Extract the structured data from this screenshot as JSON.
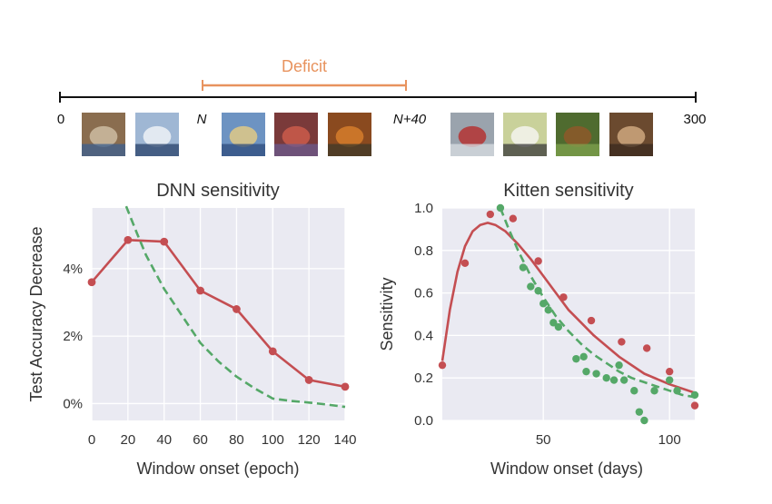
{
  "timeline": {
    "deficit_label": "Deficit",
    "start_label": "0",
    "n_label": "N",
    "n40_label": "N+40",
    "end_label": "300",
    "colors": {
      "axis": "#111111",
      "deficit": "#e8935e"
    },
    "thumbnails": [
      {
        "name": "cat",
        "colors": [
          "#8a6d4f",
          "#c9b79c",
          "#3b5f8f"
        ]
      },
      {
        "name": "ship",
        "colors": [
          "#9fb7d4",
          "#e9eef4",
          "#27406a"
        ]
      },
      {
        "name": "blurry-1",
        "colors": [
          "#6d93c2",
          "#d9c68a",
          "#2e4b7c"
        ]
      },
      {
        "name": "blurry-2",
        "colors": [
          "#7a3a3a",
          "#c75a4a",
          "#6b5b8f"
        ]
      },
      {
        "name": "blurry-3",
        "colors": [
          "#8a4a1f",
          "#d07a2a",
          "#3d3a2a"
        ]
      },
      {
        "name": "truck",
        "colors": [
          "#9aa3ad",
          "#b23a3a",
          "#d8dde3"
        ]
      },
      {
        "name": "bird",
        "colors": [
          "#c9d19a",
          "#f2f2ea",
          "#3a3a3a"
        ]
      },
      {
        "name": "horse",
        "colors": [
          "#4f6b2f",
          "#8a5a2a",
          "#7fa34f"
        ]
      },
      {
        "name": "frog",
        "colors": [
          "#6b4a2f",
          "#c9a27a",
          "#3a2a1f"
        ]
      }
    ]
  },
  "chart_data": [
    {
      "type": "line",
      "title": "DNN sensitivity",
      "xlabel": "Window onset (epoch)",
      "ylabel": "Test Accuracy Decrease",
      "xlim": [
        0,
        140
      ],
      "ylim": [
        -0.5,
        5.8
      ],
      "xticks": [
        0,
        20,
        40,
        60,
        80,
        100,
        120,
        140
      ],
      "xtick_labels": [
        "0",
        "20",
        "40",
        "60",
        "80",
        "100",
        "120",
        "140"
      ],
      "yticks": [
        0,
        2,
        4
      ],
      "ytick_labels": [
        "0%",
        "2%",
        "4%"
      ],
      "grid": true,
      "series": [
        {
          "name": "sensitivity",
          "style": "solid-markers",
          "color": "#c44e52",
          "x": [
            0,
            20,
            40,
            60,
            80,
            100,
            120,
            140
          ],
          "y": [
            3.6,
            4.85,
            4.8,
            3.35,
            2.8,
            1.55,
            0.7,
            0.5
          ]
        },
        {
          "name": "fit",
          "style": "dashed",
          "color": "#55a868",
          "x": [
            19,
            25,
            30,
            35,
            40,
            50,
            60,
            70,
            80,
            90,
            100,
            110,
            120,
            130,
            140
          ],
          "y": [
            5.85,
            5.05,
            4.4,
            3.9,
            3.4,
            2.6,
            1.8,
            1.25,
            0.8,
            0.45,
            0.15,
            0.08,
            0.03,
            -0.03,
            -0.1
          ]
        }
      ]
    },
    {
      "type": "scatter",
      "title": "Kitten sensitivity",
      "xlabel": "Window onset (days)",
      "ylabel": "Sensitivity",
      "xlim": [
        10,
        110
      ],
      "ylim": [
        0.0,
        1.0
      ],
      "xticks": [
        50,
        100
      ],
      "xtick_labels": [
        "50",
        "100"
      ],
      "yticks": [
        0.0,
        0.2,
        0.4,
        0.6,
        0.8,
        1.0
      ],
      "ytick_labels": [
        "0.0",
        "0.2",
        "0.4",
        "0.6",
        "0.8",
        "1.0"
      ],
      "grid": true,
      "series": [
        {
          "name": "red-points",
          "style": "points",
          "color": "#c44e52",
          "x": [
            10,
            19,
            29,
            38,
            48,
            58,
            69,
            81,
            91,
            100,
            110
          ],
          "y": [
            0.26,
            0.74,
            0.97,
            0.95,
            0.75,
            0.58,
            0.47,
            0.37,
            0.34,
            0.23,
            0.07
          ]
        },
        {
          "name": "red-fit",
          "style": "solid",
          "color": "#c44e52",
          "x": [
            10,
            13,
            16,
            19,
            22,
            25,
            28,
            31,
            35,
            40,
            45,
            50,
            55,
            60,
            70,
            80,
            90,
            100,
            110
          ],
          "y": [
            0.28,
            0.52,
            0.7,
            0.82,
            0.89,
            0.92,
            0.93,
            0.92,
            0.89,
            0.83,
            0.76,
            0.68,
            0.6,
            0.52,
            0.4,
            0.3,
            0.22,
            0.17,
            0.13
          ]
        },
        {
          "name": "green-points",
          "style": "points",
          "color": "#55a868",
          "x": [
            33,
            42,
            45,
            48,
            50,
            52,
            54,
            56,
            63,
            66,
            67,
            71,
            75,
            78,
            80,
            82,
            86,
            88,
            90,
            94,
            100,
            103,
            110
          ],
          "y": [
            1.0,
            0.72,
            0.63,
            0.61,
            0.55,
            0.52,
            0.46,
            0.44,
            0.29,
            0.3,
            0.23,
            0.22,
            0.2,
            0.19,
            0.26,
            0.19,
            0.14,
            0.04,
            0.0,
            0.14,
            0.19,
            0.14,
            0.12
          ]
        },
        {
          "name": "green-fit",
          "style": "dashed",
          "color": "#55a868",
          "x": [
            33,
            36,
            40,
            45,
            50,
            55,
            60,
            65,
            70,
            75,
            80,
            85,
            90,
            95,
            100,
            105,
            110
          ],
          "y": [
            1.0,
            0.91,
            0.8,
            0.68,
            0.58,
            0.49,
            0.42,
            0.36,
            0.31,
            0.27,
            0.23,
            0.2,
            0.18,
            0.16,
            0.14,
            0.12,
            0.11
          ]
        }
      ]
    }
  ]
}
